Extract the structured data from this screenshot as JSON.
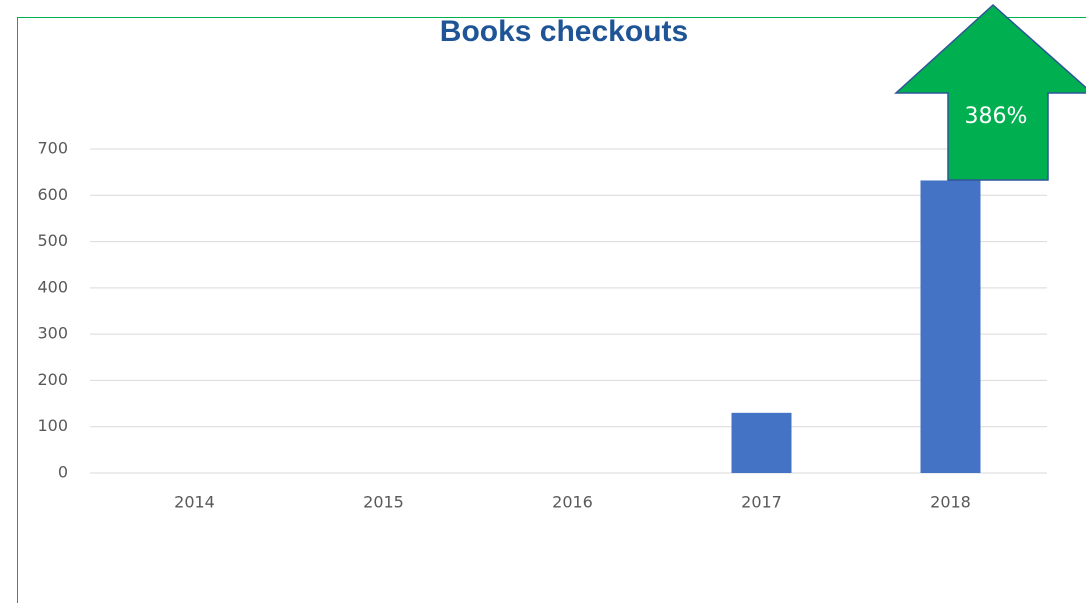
{
  "chart_data": {
    "type": "bar",
    "title": "Books checkouts",
    "categories": [
      "2014",
      "2015",
      "2016",
      "2017",
      "2018"
    ],
    "values": [
      0,
      0,
      0,
      130,
      632
    ],
    "color": "#4472c4",
    "ylim": [
      0,
      700
    ],
    "yticks": [
      0,
      100,
      200,
      300,
      400,
      500,
      600,
      700
    ],
    "grid": true,
    "annotation": "386%"
  }
}
